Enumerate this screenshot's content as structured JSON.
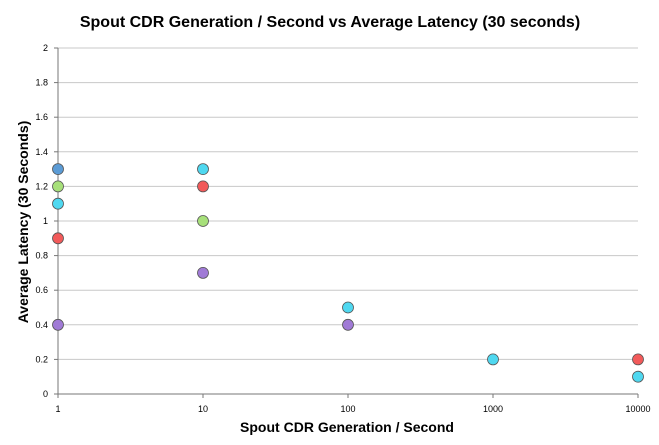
{
  "chart_data": {
    "type": "scatter",
    "title": "Spout CDR Generation / Second vs Average Latency (30 seconds)",
    "xlabel": "Spout CDR Generation / Second",
    "ylabel": "Average Latency (30 Seconds)",
    "x_scale": "log",
    "xlim": [
      1,
      10000
    ],
    "ylim": [
      0,
      2
    ],
    "x_ticks": [
      "1",
      "10",
      "100",
      "1000",
      "10000"
    ],
    "y_ticks": [
      "0",
      "0.2",
      "0.4",
      "0.6",
      "0.8",
      "1",
      "1.2",
      "1.4",
      "1.6",
      "1.8",
      "2"
    ],
    "grid": "horizontal",
    "series": [
      {
        "color": "#5b9bd5",
        "points": [
          [
            1,
            1.3
          ]
        ]
      },
      {
        "color": "#a7e07a",
        "points": [
          [
            1,
            1.2
          ],
          [
            10,
            1.0
          ]
        ]
      },
      {
        "color": "#4fd8f0",
        "points": [
          [
            1,
            1.1
          ],
          [
            10,
            1.3
          ],
          [
            100,
            0.5
          ],
          [
            1000,
            0.2
          ],
          [
            10000,
            0.1
          ]
        ]
      },
      {
        "color": "#f25a5a",
        "points": [
          [
            1,
            0.9
          ],
          [
            10,
            1.2
          ],
          [
            10000,
            0.2
          ]
        ]
      },
      {
        "color": "#a07ad6",
        "points": [
          [
            1,
            0.4
          ],
          [
            10,
            0.7
          ],
          [
            100,
            0.4
          ]
        ]
      }
    ]
  }
}
